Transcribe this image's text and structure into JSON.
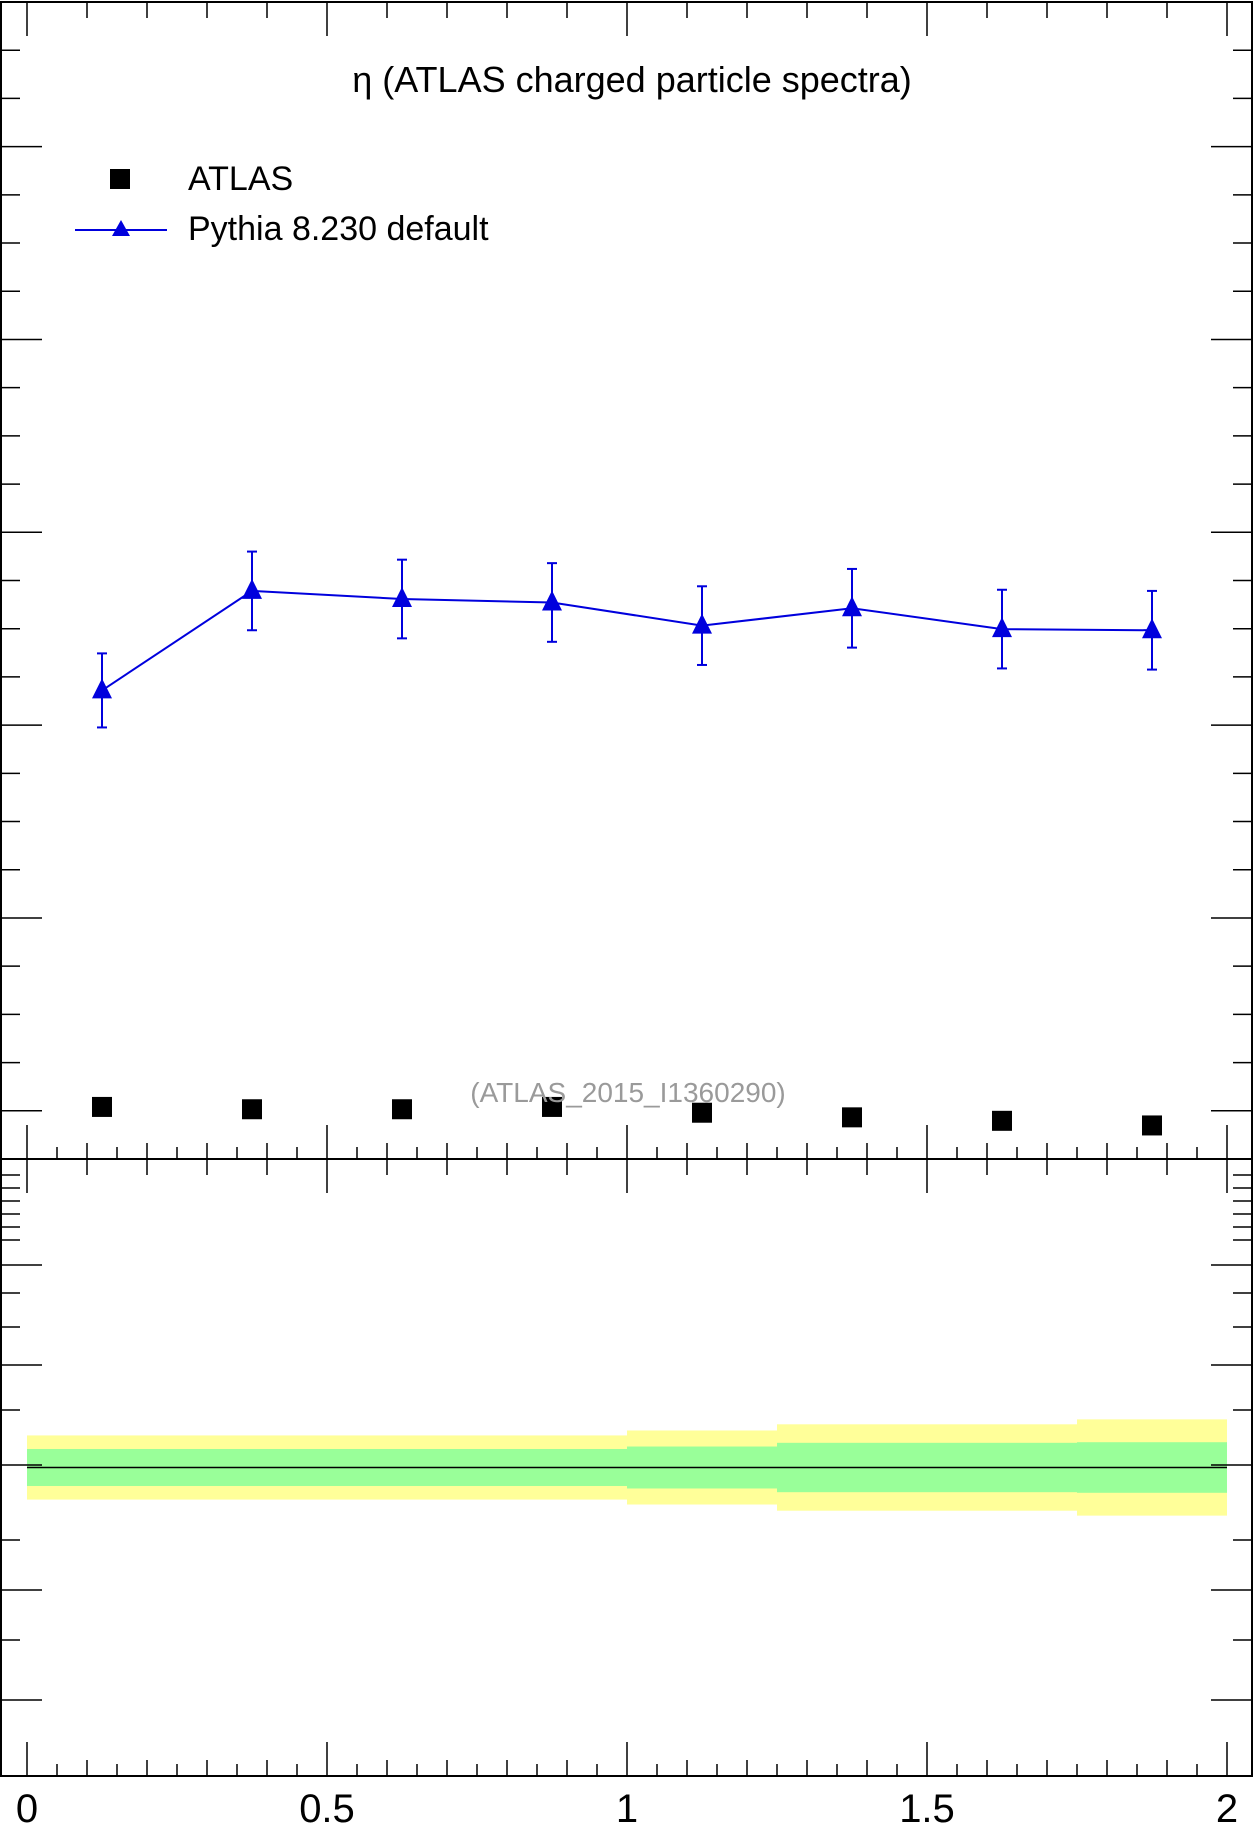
{
  "chart_data": {
    "type": "scatter",
    "title": "η (ATLAS charged particle spectra)",
    "reference_label": "(ATLAS_2015_I1360290)",
    "x_tick_labels": [
      "0",
      "0.5",
      "1",
      "1.5",
      "2"
    ],
    "xlim": [
      0,
      2
    ],
    "main_panel": {
      "ylim": [
        0,
        1
      ],
      "series": [
        {
          "name": "ATLAS",
          "color": "#000000",
          "marker": "square",
          "x": [
            0.125,
            0.375,
            0.625,
            0.875,
            1.125,
            1.375,
            1.625,
            1.875
          ],
          "y": [
            0.045,
            0.043,
            0.043,
            0.045,
            0.04,
            0.036,
            0.033,
            0.029
          ]
        },
        {
          "name": "Pythia 8.230 default",
          "color": "#0000dd",
          "marker": "triangle",
          "line": true,
          "x": [
            0.125,
            0.375,
            0.625,
            0.875,
            1.125,
            1.375,
            1.625,
            1.875
          ],
          "y": [
            0.405,
            0.491,
            0.484,
            0.481,
            0.461,
            0.476,
            0.458,
            0.457
          ],
          "err": [
            0.032,
            0.034,
            0.034,
            0.034,
            0.034,
            0.034,
            0.034,
            0.034
          ]
        }
      ],
      "legend_position": "top-left"
    },
    "ratio_panel": {
      "ylim": [
        0,
        1
      ],
      "reference_line": 0.5,
      "bands": [
        {
          "x_edges": [
            0,
            1,
            1.25,
            1.5,
            1.75,
            2
          ],
          "inner_halfwidth": [
            0.03,
            0.034,
            0.04,
            0.04,
            0.041
          ],
          "outer_halfwidth": [
            0.052,
            0.06,
            0.07,
            0.07,
            0.078
          ],
          "inner_color": "#99ff99",
          "outer_color": "#ffff99"
        }
      ]
    }
  }
}
